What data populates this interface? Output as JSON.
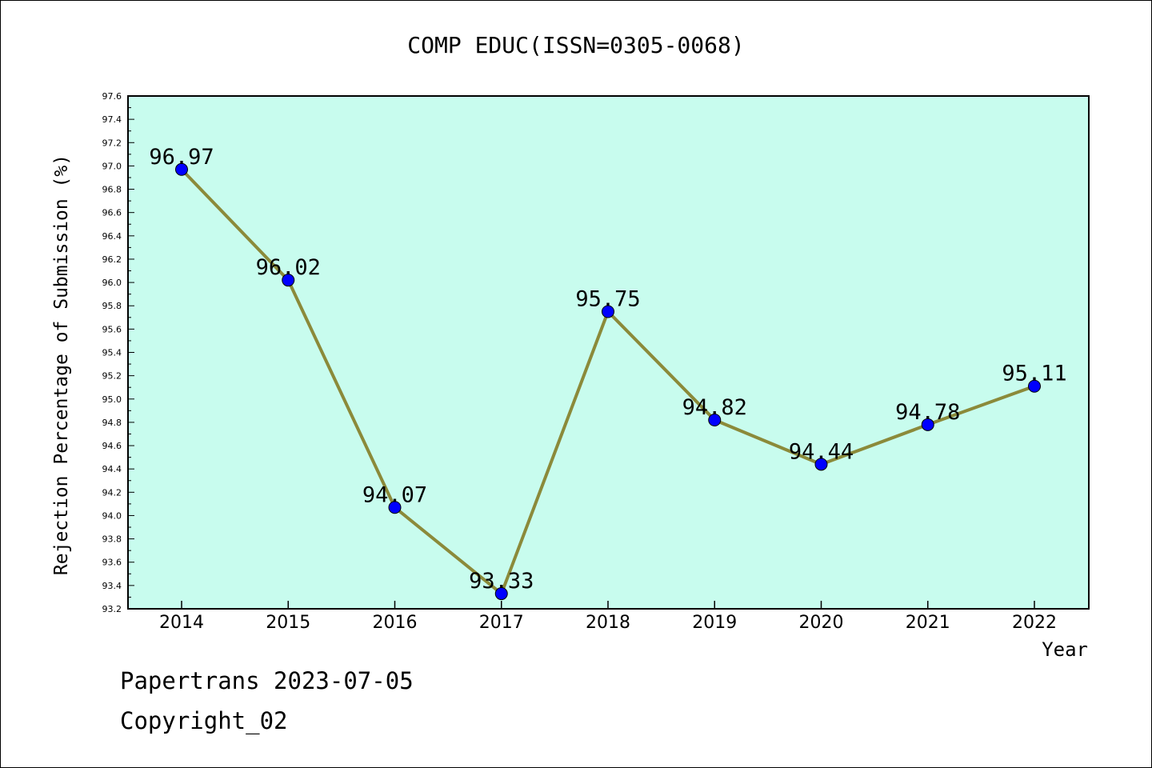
{
  "chart_data": {
    "type": "line",
    "title": "COMP EDUC(ISSN=0305-0068)",
    "xlabel": "Year",
    "ylabel": "Rejection Percentage of Submission (%)",
    "categories": [
      "2014",
      "2015",
      "2016",
      "2017",
      "2018",
      "2019",
      "2020",
      "2021",
      "2022"
    ],
    "series": [
      {
        "values": [
          96.97,
          96.02,
          94.07,
          93.33,
          95.75,
          94.82,
          94.44,
          94.78,
          95.11
        ],
        "labels": [
          "96.97",
          "96.02",
          "94.07",
          "93.33",
          "95.75",
          "94.82",
          "94.44",
          "94.78",
          "95.11"
        ]
      }
    ],
    "ylim": [
      93.2,
      97.6
    ],
    "ymajor_step": 0.2,
    "yticks": [
      "93.2",
      "93.4",
      "93.6",
      "93.8",
      "94.0",
      "94.2",
      "94.4",
      "94.6",
      "94.8",
      "95.0",
      "95.2",
      "95.4",
      "95.6",
      "95.8",
      "96.0",
      "96.2",
      "96.4",
      "96.6",
      "96.8",
      "97.0",
      "97.2",
      "97.4",
      "97.6"
    ],
    "grid": false,
    "colors": {
      "plot_background": "#c8fcee",
      "line": "#8b8a3a",
      "marker": "#0000ff"
    }
  },
  "footer": {
    "line1": "Papertrans 2023-07-05",
    "line2": "Copyright_02"
  }
}
